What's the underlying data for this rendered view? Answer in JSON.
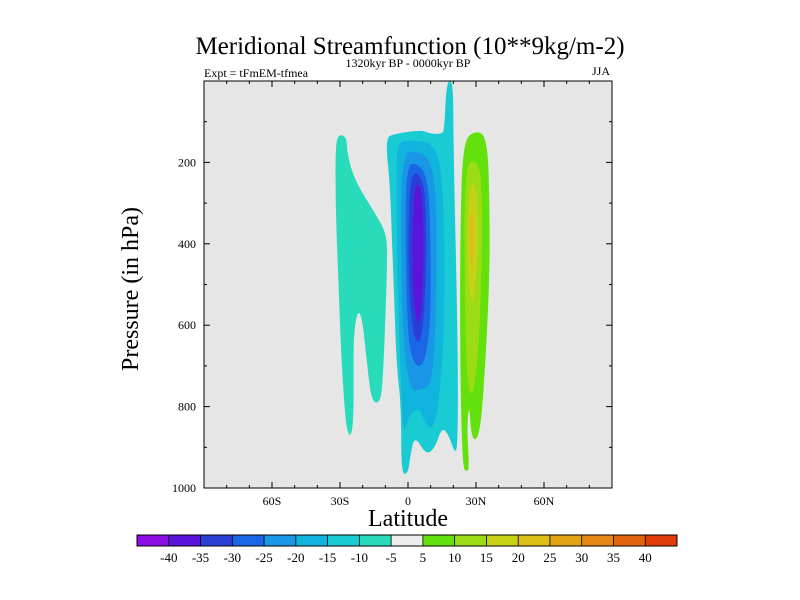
{
  "chart_data": {
    "type": "contour",
    "title": "Meridional Streamfunction (10**9kg/m-2)",
    "subtitle_left": "Expt = tFmEM-tfmea",
    "subtitle_center": "1320kyr BP - 0000kyr BP",
    "subtitle_right": "JJA",
    "xlabel": "Latitude",
    "ylabel": "Pressure (in hPa)",
    "xlim": [
      -90,
      90
    ],
    "ylim": [
      1000,
      0
    ],
    "x_ticks": [
      {
        "value": -60,
        "label": "60S"
      },
      {
        "value": -30,
        "label": "30S"
      },
      {
        "value": 0,
        "label": "0"
      },
      {
        "value": 30,
        "label": "30N"
      },
      {
        "value": 60,
        "label": "60N"
      }
    ],
    "y_ticks": [
      {
        "value": 200,
        "label": "200"
      },
      {
        "value": 400,
        "label": "400"
      },
      {
        "value": 600,
        "label": "600"
      },
      {
        "value": 800,
        "label": "800"
      },
      {
        "value": 1000,
        "label": "1000"
      }
    ],
    "background_color": "#e6e6e6",
    "contour_levels": [
      -40,
      -35,
      -30,
      -25,
      -20,
      -15,
      -10,
      -5,
      5,
      10,
      15,
      20,
      25,
      30,
      35,
      40
    ],
    "colorbar_colors": [
      "#8c0ce6",
      "#5a14dc",
      "#2b3fd7",
      "#1a66e6",
      "#1a96e6",
      "#11b4dc",
      "#19cbd2",
      "#28dcbb",
      "#ececec",
      "#63e10c",
      "#9cdc14",
      "#c8d214",
      "#dcbe14",
      "#e1a314",
      "#e68614",
      "#e2640f",
      "#e03c0a"
    ],
    "regions": [
      {
        "name": "neg-5",
        "value": -7.5,
        "points": [
          [
            -30,
            130
          ],
          [
            -27,
            140
          ],
          [
            -27,
            170
          ],
          [
            -24,
            240
          ],
          [
            -14,
            330
          ],
          [
            -10,
            370
          ],
          [
            -9,
            415
          ],
          [
            -10,
            590
          ],
          [
            -11,
            720
          ],
          [
            -12,
            790
          ],
          [
            -16,
            790
          ],
          [
            -18,
            700
          ],
          [
            -20,
            590
          ],
          [
            -22,
            560
          ],
          [
            -24,
            620
          ],
          [
            -24,
            720
          ],
          [
            -24,
            820
          ],
          [
            -25,
            875
          ],
          [
            -27,
            860
          ],
          [
            -28,
            800
          ],
          [
            -29,
            720
          ],
          [
            -30,
            600
          ],
          [
            -31,
            450
          ],
          [
            -32,
            300
          ],
          [
            -32,
            150
          ]
        ]
      },
      {
        "name": "neg-10",
        "value": -12.5,
        "points": [
          [
            -10,
            140
          ],
          [
            -6,
            130
          ],
          [
            6,
            120
          ],
          [
            10,
            130
          ],
          [
            15,
            130
          ],
          [
            16,
            120
          ],
          [
            17,
            0
          ],
          [
            20,
            0
          ],
          [
            20,
            150
          ],
          [
            22,
            650
          ],
          [
            22,
            880
          ],
          [
            21,
            920
          ],
          [
            18,
            870
          ],
          [
            15,
            850
          ],
          [
            12,
            900
          ],
          [
            8,
            920
          ],
          [
            3,
            870
          ],
          [
            1,
            920
          ],
          [
            0,
            965
          ],
          [
            -3,
            965
          ],
          [
            -3,
            800
          ],
          [
            -5,
            700
          ],
          [
            -6,
            550
          ],
          [
            -7,
            400
          ],
          [
            -8,
            250
          ]
        ]
      },
      {
        "name": "neg-15",
        "value": -17.5,
        "points": [
          [
            -5,
            150
          ],
          [
            2,
            145
          ],
          [
            13,
            155
          ],
          [
            16,
            300
          ],
          [
            16,
            600
          ],
          [
            15,
            700
          ],
          [
            13,
            820
          ],
          [
            10,
            860
          ],
          [
            7,
            830
          ],
          [
            4,
            800
          ],
          [
            0,
            830
          ],
          [
            -2,
            870
          ],
          [
            -3,
            760
          ],
          [
            -4,
            600
          ],
          [
            -5,
            400
          ],
          [
            -5,
            250
          ]
        ]
      },
      {
        "name": "neg-20",
        "value": -22.5,
        "points": [
          [
            -3,
            180
          ],
          [
            4,
            170
          ],
          [
            11,
            200
          ],
          [
            13,
            350
          ],
          [
            12,
            650
          ],
          [
            10,
            750
          ],
          [
            5,
            760
          ],
          [
            1,
            760
          ],
          [
            -2,
            650
          ],
          [
            -3,
            450
          ]
        ]
      },
      {
        "name": "neg-25",
        "value": -27.5,
        "points": [
          [
            -1,
            210
          ],
          [
            4,
            200
          ],
          [
            9,
            240
          ],
          [
            10,
            400
          ],
          [
            10,
            600
          ],
          [
            7,
            700
          ],
          [
            3,
            700
          ],
          [
            0,
            640
          ],
          [
            -1,
            450
          ]
        ]
      },
      {
        "name": "neg-30",
        "value": -32.5,
        "points": [
          [
            1,
            230
          ],
          [
            5,
            225
          ],
          [
            8,
            280
          ],
          [
            8,
            500
          ],
          [
            6,
            640
          ],
          [
            3,
            640
          ],
          [
            1,
            560
          ],
          [
            0,
            400
          ]
        ]
      },
      {
        "name": "neg-35",
        "value": -37.5,
        "points": [
          [
            3,
            250
          ],
          [
            6,
            260
          ],
          [
            7,
            400
          ],
          [
            6,
            580
          ],
          [
            4,
            600
          ],
          [
            2,
            520
          ],
          [
            2,
            350
          ]
        ]
      },
      {
        "name": "pos-5",
        "value": 7.5,
        "points": [
          [
            24,
            150
          ],
          [
            30,
            120
          ],
          [
            35,
            140
          ],
          [
            36,
            300
          ],
          [
            36,
            500
          ],
          [
            33,
            800
          ],
          [
            31,
            880
          ],
          [
            28,
            880
          ],
          [
            27,
            790
          ],
          [
            26,
            850
          ],
          [
            27,
            950
          ],
          [
            26,
            960
          ],
          [
            24,
            950
          ],
          [
            23,
            700
          ],
          [
            23,
            400
          ]
        ]
      },
      {
        "name": "pos-10",
        "value": 12.5,
        "points": [
          [
            25,
            210
          ],
          [
            30,
            190
          ],
          [
            33,
            250
          ],
          [
            32,
            600
          ],
          [
            29,
            780
          ],
          [
            26,
            750
          ],
          [
            25,
            500
          ]
        ]
      },
      {
        "name": "pos-15",
        "value": 17.5,
        "points": [
          [
            27,
            260
          ],
          [
            30,
            250
          ],
          [
            31,
            350
          ],
          [
            30,
            500
          ],
          [
            28,
            560
          ],
          [
            26,
            450
          ]
        ]
      },
      {
        "name": "pos-20",
        "value": 22.5,
        "points": [
          [
            27,
            320
          ],
          [
            29,
            330
          ],
          [
            29,
            430
          ],
          [
            28,
            470
          ],
          [
            27,
            400
          ]
        ]
      }
    ]
  }
}
